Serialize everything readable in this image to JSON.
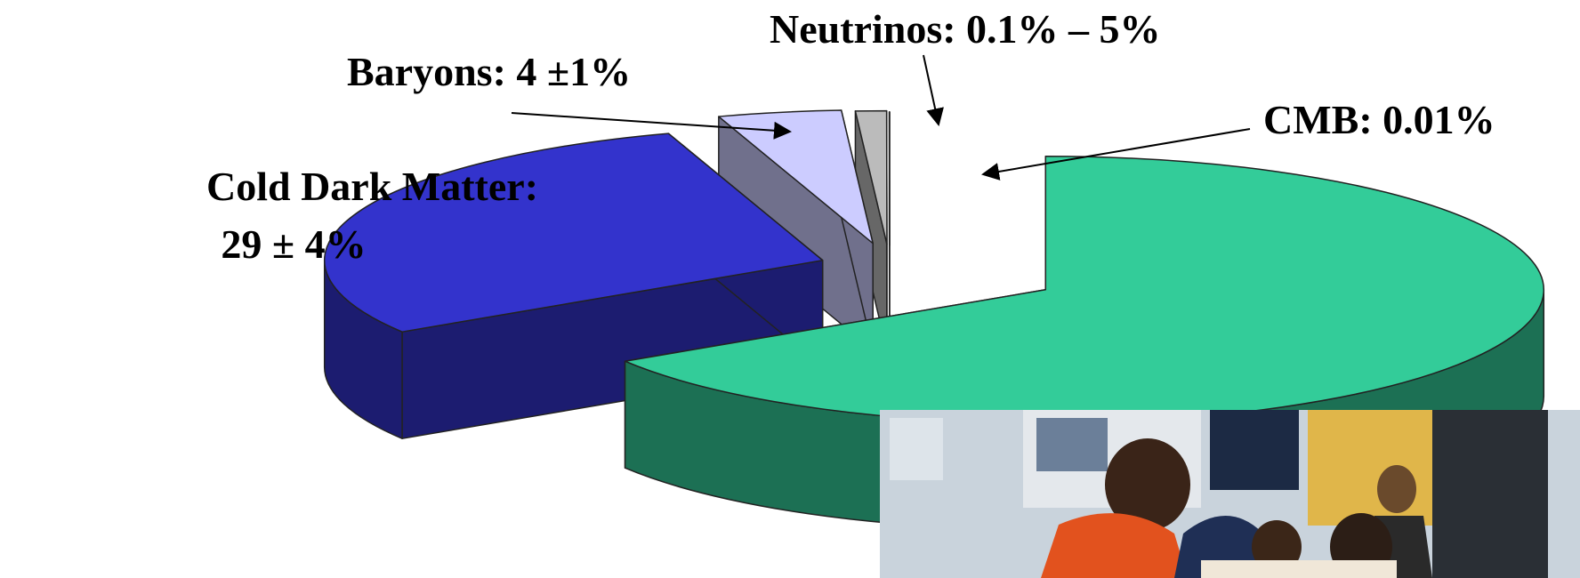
{
  "chart_data": {
    "type": "pie",
    "categories": [
      null,
      "Cold Dark Matter:",
      "Baryons:",
      "Neutrinos:",
      "CMB:"
    ],
    "values": [
      66,
      29,
      4,
      1,
      0.01
    ],
    "value_labels": [
      null,
      "29 ± 4%",
      "4 ±1%",
      "0.1% – 5%",
      "0.01%"
    ],
    "colors": [
      "#33cc99",
      "#3333cc",
      "#ccccff",
      "#bbbbbb",
      "#999999"
    ]
  }
}
